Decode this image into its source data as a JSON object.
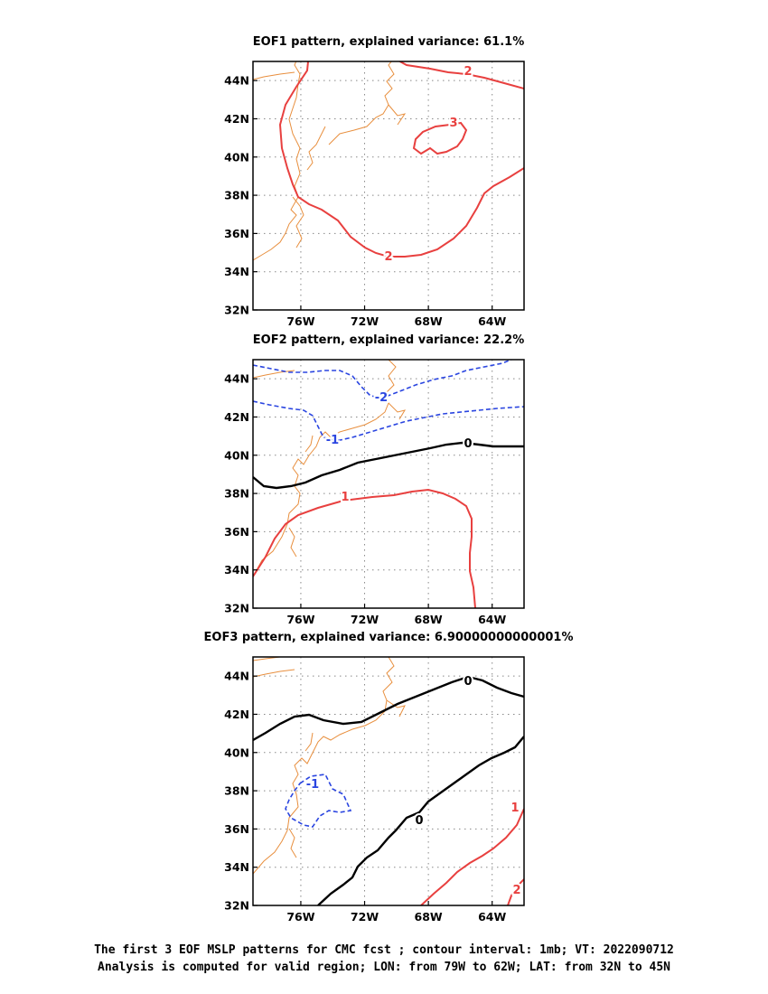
{
  "colors": {
    "coast": "#e88f3e",
    "positive": "#e8403f",
    "negative": "#2a45e0",
    "zero": "#000000",
    "grid": "#888888"
  },
  "panels": [
    {
      "title": "EOF1 pattern, explained variance: 61.1%",
      "contour_labels": [
        "2",
        "3",
        "2"
      ]
    },
    {
      "title": "EOF2 pattern, explained variance: 22.2%",
      "contour_labels": [
        "-2",
        "-1",
        "0",
        "1"
      ]
    },
    {
      "title": "EOF3 pattern, explained variance: 6.90000000000001%",
      "contour_labels": [
        "0",
        "0",
        "-1",
        "1",
        "2"
      ]
    }
  ],
  "axes": {
    "lon_ticks": [
      "76W",
      "72W",
      "68W",
      "64W"
    ],
    "lat_ticks": [
      "44N",
      "42N",
      "40N",
      "38N",
      "36N",
      "34N",
      "32N"
    ]
  },
  "chart_data": {
    "type": "map-contour",
    "lon_range": [
      -79,
      -62
    ],
    "lat_range": [
      32,
      45
    ],
    "lon_tick_values": [
      -76,
      -72,
      -68,
      -64
    ],
    "lat_tick_values": [
      44,
      42,
      40,
      38,
      36,
      34,
      32
    ],
    "grid": true,
    "contour_interval": 1
  },
  "caption": {
    "line1": "The first 3 EOF MSLP patterns for CMC fcst ; contour interval: 1mb; VT: 2022090712",
    "line2": "Analysis is computed for valid region; LON: from 79W to 62W; LAT: from 32N to 45N"
  }
}
